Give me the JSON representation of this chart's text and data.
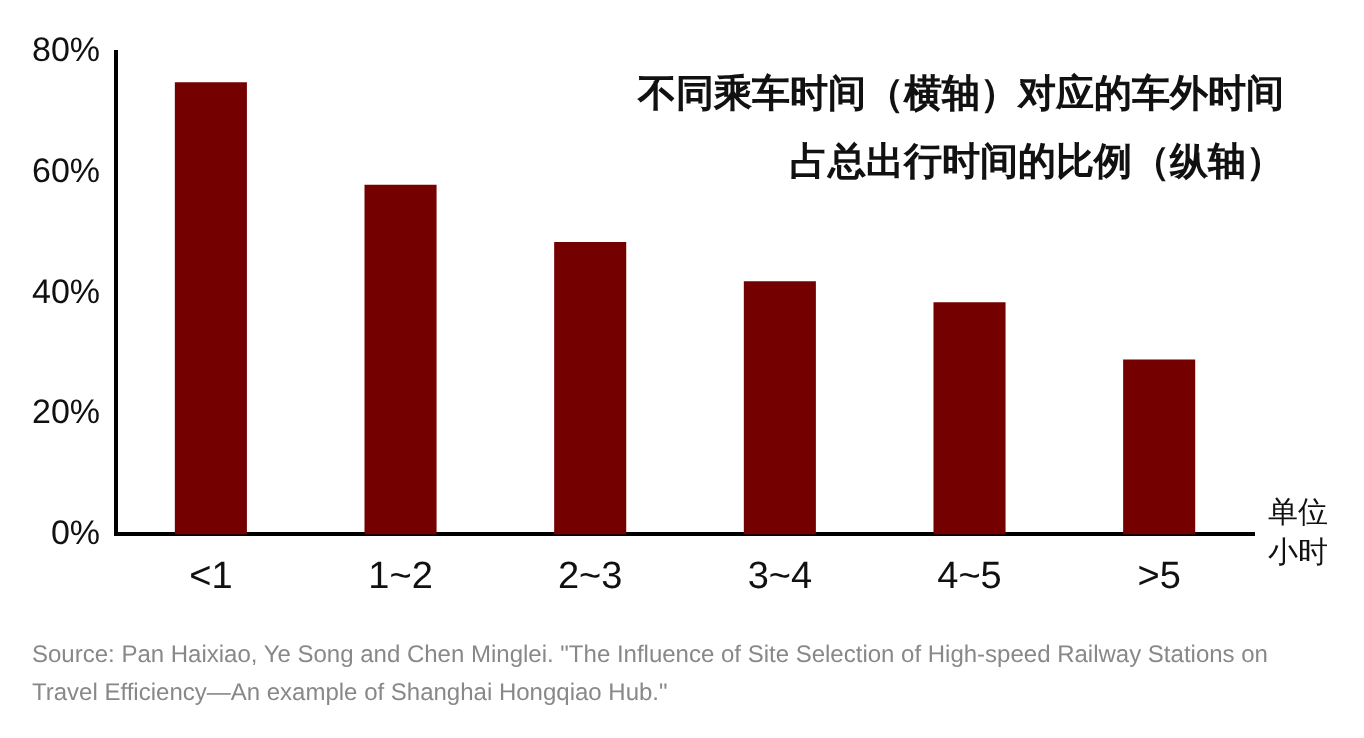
{
  "chart_data": {
    "type": "bar",
    "title": "不同乘车时间（横轴）对应的车外时间占总出行时间的比例（纵轴）",
    "xlabel": "单位小时",
    "categories": [
      "<1",
      "1~2",
      "2~3",
      "3~4",
      "4~5",
      ">5"
    ],
    "values": [
      75,
      58,
      48.5,
      42,
      38.5,
      29
    ],
    "color": "#750000",
    "ylim": [
      0,
      80
    ],
    "yticks": [
      {
        "value": 0,
        "label": "0%"
      },
      {
        "value": 20,
        "label": "20%"
      },
      {
        "value": 40,
        "label": "40%"
      },
      {
        "value": 60,
        "label": "60%"
      },
      {
        "value": 80,
        "label": "80%"
      }
    ],
    "grid": false,
    "legend": false,
    "annotations": [
      "Source: Pan Haixiao, Ye Song and Chen Minglei. \"The Influence of Site Selection of High-speed Railway Stations on Travel Efficiency—An example of Shanghai Hongqiao Hub.\""
    ]
  }
}
